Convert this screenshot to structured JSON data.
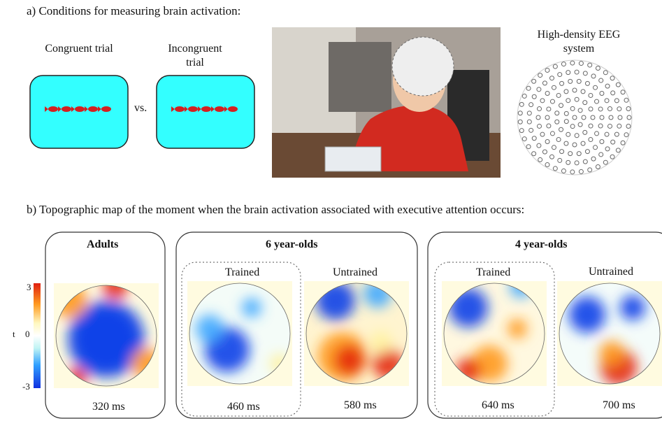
{
  "panel_a": {
    "title": "a) Conditions for measuring brain activation:",
    "conditions": [
      {
        "label": "Congruent trial"
      },
      {
        "label": "Incongruent trial"
      }
    ],
    "vs": "vs.",
    "eeg_label": "High-density EEG system"
  },
  "panel_b": {
    "title": "b) Topographic map of the moment when the brain activation associated with executive attention occurs:",
    "colorbar": {
      "max": 3,
      "label": "t",
      "mid": 0,
      "min": -3
    },
    "groups": [
      {
        "name": "Adults",
        "maps": [
          {
            "time": "320 ms"
          }
        ]
      },
      {
        "name": "6 year-olds",
        "maps": [
          {
            "label": "Trained",
            "time": "460 ms"
          },
          {
            "label": "Untrained",
            "time": "580 ms"
          }
        ]
      },
      {
        "name": "4 year-olds",
        "maps": [
          {
            "label": "Trained",
            "time": "640 ms"
          },
          {
            "label": "Untrained",
            "time": "700 ms"
          }
        ]
      }
    ]
  }
}
